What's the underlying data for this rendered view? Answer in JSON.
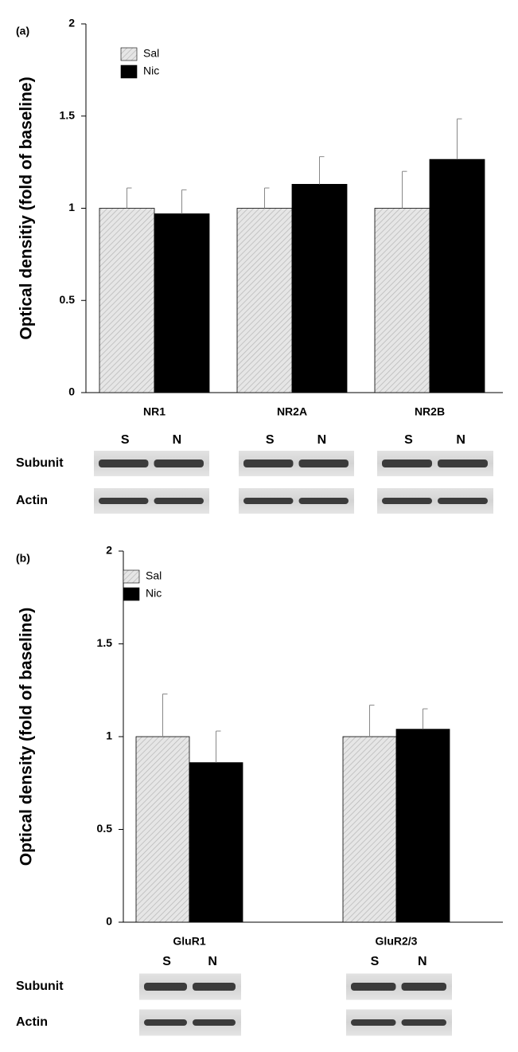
{
  "chart_data": [
    {
      "type": "bar",
      "panel": "(a)",
      "ylabel": "Optical densitiy (fold of baseline)",
      "categories": [
        "NR1",
        "NR2A",
        "NR2B"
      ],
      "series": [
        {
          "name": "Sal",
          "color": "#dcdcdc",
          "values": [
            1.0,
            1.0,
            1.0
          ],
          "errors": [
            0.11,
            0.11,
            0.2
          ]
        },
        {
          "name": "Nic",
          "color": "#000000",
          "values": [
            0.97,
            1.13,
            1.265
          ],
          "errors": [
            0.13,
            0.15,
            0.22
          ]
        }
      ],
      "ylim": [
        0,
        2
      ],
      "yticks": [
        0,
        0.5,
        1,
        1.5,
        2
      ],
      "legend": "upper left",
      "blot": {
        "lanes": [
          "S",
          "N"
        ],
        "rows": [
          "Subunit",
          "Actin"
        ]
      }
    },
    {
      "type": "bar",
      "panel": "(b)",
      "ylabel": "Optical density (fold of baseline)",
      "categories": [
        "GluR1",
        "GluR2/3"
      ],
      "series": [
        {
          "name": "Sal",
          "color": "#dcdcdc",
          "values": [
            1.0,
            1.0
          ],
          "errors": [
            0.23,
            0.17
          ]
        },
        {
          "name": "Nic",
          "color": "#000000",
          "values": [
            0.86,
            1.04
          ],
          "errors": [
            0.17,
            0.11
          ]
        }
      ],
      "ylim": [
        0,
        2
      ],
      "yticks": [
        0,
        0.5,
        1,
        1.5,
        2
      ],
      "legend": "upper left",
      "blot": {
        "lanes": [
          "S",
          "N"
        ],
        "rows": [
          "Subunit",
          "Actin"
        ]
      }
    }
  ]
}
